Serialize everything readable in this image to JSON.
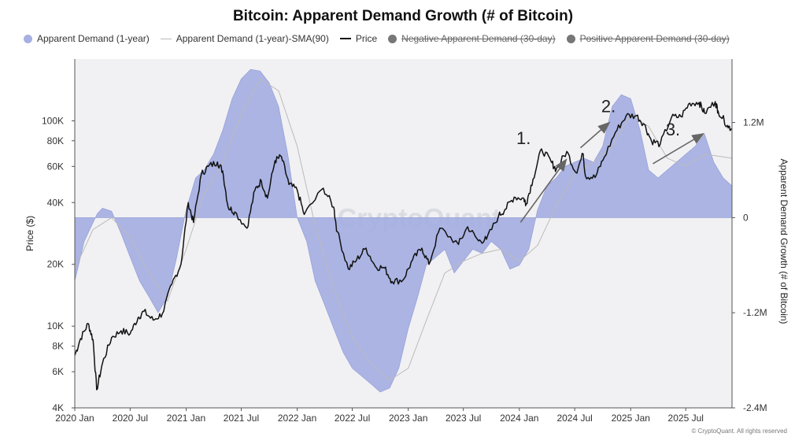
{
  "chart_data": {
    "type": "area",
    "title": "Bitcoin: Apparent Demand Growth (# of Bitcoin)",
    "legend": [
      {
        "label": "Apparent Demand (1-year)",
        "swatch": "dot",
        "color": "#a7b0e2",
        "struck": false
      },
      {
        "label": "Apparent Demand (1-year)-SMA(90)",
        "swatch": "line",
        "color": "#bbbbbb",
        "struck": false
      },
      {
        "label": "Price",
        "swatch": "line-dark",
        "color": "#111111",
        "struck": false
      },
      {
        "label": "Negative Apparent Demand (30-day)",
        "swatch": "dot",
        "color": "#777777",
        "struck": true
      },
      {
        "label": "Positive Apparent Demand (30-day)",
        "swatch": "dot",
        "color": "#777777",
        "struck": true
      }
    ],
    "legend_placement": "top",
    "ylabel_left": "Price ($)",
    "ylabel_right": "Apparent Demand Growth (# of Bitcoin)",
    "left_axis_scale": "log",
    "left_ylim": [
      4000,
      200000
    ],
    "right_ylim": [
      -2400000,
      2000000
    ],
    "left_ticks": [
      {
        "label": "4K",
        "value": 4000
      },
      {
        "label": "6K",
        "value": 6000
      },
      {
        "label": "8K",
        "value": 8000
      },
      {
        "label": "10K",
        "value": 10000
      },
      {
        "label": "20K",
        "value": 20000
      },
      {
        "label": "40K",
        "value": 40000
      },
      {
        "label": "60K",
        "value": 60000
      },
      {
        "label": "80K",
        "value": 80000
      },
      {
        "label": "100K",
        "value": 100000
      }
    ],
    "right_ticks": [
      {
        "label": "-2.4M",
        "value": -2400000
      },
      {
        "label": "-1.2M",
        "value": -1200000
      },
      {
        "label": "0",
        "value": 0
      },
      {
        "label": "1.2M",
        "value": 1200000
      }
    ],
    "x_ticks": [
      {
        "label": "2020 Jan",
        "value": "2020-01-01"
      },
      {
        "label": "2020 Jul",
        "value": "2020-07-01"
      },
      {
        "label": "2021 Jan",
        "value": "2021-01-01"
      },
      {
        "label": "2021 Jul",
        "value": "2021-07-01"
      },
      {
        "label": "2022 Jan",
        "value": "2022-01-01"
      },
      {
        "label": "2022 Jul",
        "value": "2022-07-01"
      },
      {
        "label": "2023 Jan",
        "value": "2023-01-01"
      },
      {
        "label": "2023 Jul",
        "value": "2023-07-01"
      },
      {
        "label": "2024 Jan",
        "value": "2024-01-01"
      },
      {
        "label": "2024 Jul",
        "value": "2024-07-01"
      },
      {
        "label": "2025 Jan",
        "value": "2025-01-01"
      },
      {
        "label": "2025 Jul",
        "value": "2025-07-01"
      }
    ],
    "xlim": [
      "2020-01-01",
      "2025-11-30"
    ],
    "grid": false,
    "series": [
      {
        "name": "Apparent Demand (1-year)",
        "axis": "right",
        "color": "#a7b0e2",
        "points": [
          [
            "2020-01-01",
            -800000
          ],
          [
            "2020-02-01",
            -300000
          ],
          [
            "2020-03-15",
            50000
          ],
          [
            "2020-04-01",
            120000
          ],
          [
            "2020-05-01",
            80000
          ],
          [
            "2020-06-01",
            -200000
          ],
          [
            "2020-07-01",
            -500000
          ],
          [
            "2020-08-01",
            -800000
          ],
          [
            "2020-09-01",
            -1000000
          ],
          [
            "2020-10-01",
            -1200000
          ],
          [
            "2020-11-01",
            -1000000
          ],
          [
            "2020-12-01",
            -500000
          ],
          [
            "2021-01-01",
            100000
          ],
          [
            "2021-02-01",
            500000
          ],
          [
            "2021-03-01",
            600000
          ],
          [
            "2021-04-01",
            800000
          ],
          [
            "2021-05-01",
            1100000
          ],
          [
            "2021-06-01",
            1500000
          ],
          [
            "2021-07-01",
            1750000
          ],
          [
            "2021-08-01",
            1870000
          ],
          [
            "2021-09-01",
            1850000
          ],
          [
            "2021-10-01",
            1700000
          ],
          [
            "2021-11-01",
            1400000
          ],
          [
            "2021-12-01",
            800000
          ],
          [
            "2022-01-01",
            0
          ],
          [
            "2022-02-01",
            -300000
          ],
          [
            "2022-03-01",
            -800000
          ],
          [
            "2022-04-01",
            -1100000
          ],
          [
            "2022-05-01",
            -1400000
          ],
          [
            "2022-06-01",
            -1700000
          ],
          [
            "2022-07-01",
            -1900000
          ],
          [
            "2022-08-01",
            -2000000
          ],
          [
            "2022-09-01",
            -2100000
          ],
          [
            "2022-10-01",
            -2200000
          ],
          [
            "2022-11-01",
            -2150000
          ],
          [
            "2022-12-01",
            -1900000
          ],
          [
            "2023-01-01",
            -1400000
          ],
          [
            "2023-02-01",
            -1000000
          ],
          [
            "2023-03-01",
            -600000
          ],
          [
            "2023-04-01",
            -500000
          ],
          [
            "2023-05-01",
            -400000
          ],
          [
            "2023-06-01",
            -700000
          ],
          [
            "2023-07-01",
            -550000
          ],
          [
            "2023-08-01",
            -400000
          ],
          [
            "2023-09-01",
            -450000
          ],
          [
            "2023-10-01",
            -300000
          ],
          [
            "2023-11-01",
            -400000
          ],
          [
            "2023-12-01",
            -650000
          ],
          [
            "2024-01-01",
            -600000
          ],
          [
            "2024-02-01",
            -400000
          ],
          [
            "2024-03-01",
            100000
          ],
          [
            "2024-04-01",
            400000
          ],
          [
            "2024-05-01",
            500000
          ],
          [
            "2024-06-01",
            650000
          ],
          [
            "2024-07-01",
            700000
          ],
          [
            "2024-08-01",
            750000
          ],
          [
            "2024-09-01",
            700000
          ],
          [
            "2024-10-01",
            900000
          ],
          [
            "2024-11-01",
            1400000
          ],
          [
            "2024-12-01",
            1550000
          ],
          [
            "2025-01-01",
            1500000
          ],
          [
            "2025-02-01",
            1100000
          ],
          [
            "2025-03-01",
            600000
          ],
          [
            "2025-04-01",
            500000
          ],
          [
            "2025-05-01",
            600000
          ],
          [
            "2025-06-01",
            700000
          ],
          [
            "2025-07-01",
            800000
          ],
          [
            "2025-08-01",
            900000
          ],
          [
            "2025-09-01",
            1050000
          ],
          [
            "2025-10-01",
            700000
          ],
          [
            "2025-11-01",
            500000
          ],
          [
            "2025-11-30",
            400000
          ]
        ]
      },
      {
        "name": "Apparent Demand (1-year)-SMA(90)",
        "axis": "right",
        "color": "#bbbbbb",
        "points": [
          [
            "2020-01-01",
            -650000
          ],
          [
            "2020-03-01",
            -150000
          ],
          [
            "2020-05-01",
            0
          ],
          [
            "2020-07-01",
            -250000
          ],
          [
            "2020-09-01",
            -700000
          ],
          [
            "2020-11-01",
            -1050000
          ],
          [
            "2021-01-01",
            -400000
          ],
          [
            "2021-03-01",
            300000
          ],
          [
            "2021-05-01",
            700000
          ],
          [
            "2021-07-01",
            1300000
          ],
          [
            "2021-09-01",
            1750000
          ],
          [
            "2021-11-01",
            1600000
          ],
          [
            "2022-01-01",
            900000
          ],
          [
            "2022-03-01",
            -100000
          ],
          [
            "2022-05-01",
            -900000
          ],
          [
            "2022-07-01",
            -1500000
          ],
          [
            "2022-09-01",
            -1850000
          ],
          [
            "2022-11-01",
            -2050000
          ],
          [
            "2023-01-01",
            -1900000
          ],
          [
            "2023-03-01",
            -1300000
          ],
          [
            "2023-05-01",
            -700000
          ],
          [
            "2023-07-01",
            -550000
          ],
          [
            "2023-09-01",
            -450000
          ],
          [
            "2023-11-01",
            -400000
          ],
          [
            "2024-01-01",
            -550000
          ],
          [
            "2024-03-01",
            -350000
          ],
          [
            "2024-05-01",
            150000
          ],
          [
            "2024-07-01",
            550000
          ],
          [
            "2024-09-01",
            700000
          ],
          [
            "2024-11-01",
            900000
          ],
          [
            "2025-01-01",
            1300000
          ],
          [
            "2025-03-01",
            1150000
          ],
          [
            "2025-05-01",
            750000
          ],
          [
            "2025-07-01",
            650000
          ],
          [
            "2025-09-01",
            800000
          ],
          [
            "2025-11-30",
            750000
          ]
        ]
      },
      {
        "name": "Price",
        "axis": "left",
        "color": "#111111",
        "points": [
          [
            "2020-01-01",
            7200
          ],
          [
            "2020-01-20",
            8700
          ],
          [
            "2020-02-14",
            10300
          ],
          [
            "2020-03-01",
            8600
          ],
          [
            "2020-03-13",
            4900
          ],
          [
            "2020-04-01",
            6600
          ],
          [
            "2020-05-01",
            8800
          ],
          [
            "2020-06-01",
            9500
          ],
          [
            "2020-07-01",
            9200
          ],
          [
            "2020-07-27",
            11000
          ],
          [
            "2020-08-15",
            11800
          ],
          [
            "2020-09-15",
            10700
          ],
          [
            "2020-10-15",
            11500
          ],
          [
            "2020-11-15",
            16000
          ],
          [
            "2020-12-15",
            20000
          ],
          [
            "2021-01-08",
            40000
          ],
          [
            "2021-01-25",
            32000
          ],
          [
            "2021-02-20",
            55000
          ],
          [
            "2021-03-15",
            60000
          ],
          [
            "2021-04-14",
            63000
          ],
          [
            "2021-05-01",
            57000
          ],
          [
            "2021-05-19",
            38000
          ],
          [
            "2021-06-10",
            36000
          ],
          [
            "2021-07-20",
            30000
          ],
          [
            "2021-08-15",
            46000
          ],
          [
            "2021-09-05",
            51000
          ],
          [
            "2021-09-25",
            42000
          ],
          [
            "2021-10-20",
            64000
          ],
          [
            "2021-11-10",
            67000
          ],
          [
            "2021-12-05",
            49000
          ],
          [
            "2022-01-01",
            46000
          ],
          [
            "2022-01-24",
            35000
          ],
          [
            "2022-03-28",
            47000
          ],
          [
            "2022-05-01",
            38000
          ],
          [
            "2022-05-12",
            29000
          ],
          [
            "2022-06-18",
            19000
          ],
          [
            "2022-07-15",
            21000
          ],
          [
            "2022-08-15",
            24000
          ],
          [
            "2022-09-15",
            19500
          ],
          [
            "2022-10-15",
            19200
          ],
          [
            "2022-11-09",
            16500
          ],
          [
            "2022-12-15",
            16800
          ],
          [
            "2023-01-15",
            21000
          ],
          [
            "2023-02-15",
            24000
          ],
          [
            "2023-03-10",
            20000
          ],
          [
            "2023-04-15",
            30000
          ],
          [
            "2023-06-15",
            25000
          ],
          [
            "2023-07-15",
            30500
          ],
          [
            "2023-08-20",
            26000
          ],
          [
            "2023-09-15",
            26500
          ],
          [
            "2023-10-25",
            34500
          ],
          [
            "2023-11-15",
            37000
          ],
          [
            "2023-12-15",
            42500
          ],
          [
            "2024-01-15",
            42000
          ],
          [
            "2024-01-23",
            39500
          ],
          [
            "2024-02-15",
            52000
          ],
          [
            "2024-03-14",
            73000
          ],
          [
            "2024-04-15",
            63000
          ],
          [
            "2024-05-01",
            58000
          ],
          [
            "2024-06-05",
            71000
          ],
          [
            "2024-07-05",
            56000
          ],
          [
            "2024-07-29",
            69000
          ],
          [
            "2024-08-05",
            54000
          ],
          [
            "2024-09-06",
            53000
          ],
          [
            "2024-10-01",
            64000
          ],
          [
            "2024-11-12",
            88000
          ],
          [
            "2024-12-17",
            106000
          ],
          [
            "2025-01-20",
            106000
          ],
          [
            "2025-02-15",
            96000
          ],
          [
            "2025-03-10",
            80000
          ],
          [
            "2025-04-08",
            77000
          ],
          [
            "2025-05-15",
            104000
          ],
          [
            "2025-06-15",
            105000
          ],
          [
            "2025-07-14",
            122000
          ],
          [
            "2025-08-14",
            123000
          ],
          [
            "2025-09-01",
            109000
          ],
          [
            "2025-10-06",
            124000
          ],
          [
            "2025-10-15",
            112000
          ],
          [
            "2025-11-15",
            95000
          ],
          [
            "2025-11-30",
            91000
          ]
        ]
      }
    ],
    "annotations": [
      {
        "label": "1.",
        "anchor_date": "2024-01-15",
        "anchor_price": 77000,
        "arrow_from": [
          "2024-01-05",
          -60000
        ],
        "arrow_to": [
          "2024-06-01",
          720000
        ]
      },
      {
        "label": "2.",
        "anchor_date": "2024-10-20",
        "anchor_price": 110000,
        "arrow_from": [
          "2024-07-20",
          880000
        ],
        "arrow_to": [
          "2024-10-20",
          1190000
        ]
      },
      {
        "label": "3.",
        "anchor_date": "2025-05-20",
        "anchor_price": 85000,
        "arrow_from": [
          "2025-03-15",
          680000
        ],
        "arrow_to": [
          "2025-08-25",
          1050000
        ]
      }
    ],
    "watermark": "CryptoQuant"
  },
  "footer": "© CryptoQuant. All rights reserved"
}
